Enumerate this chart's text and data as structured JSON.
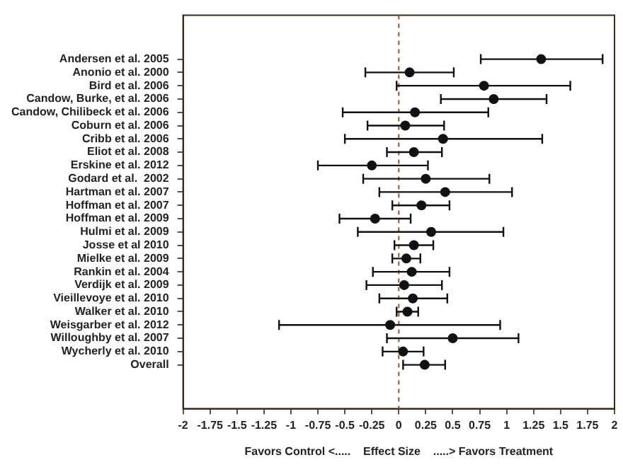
{
  "chart_data": {
    "type": "scatter",
    "orientation": "horizontal",
    "xlabel": "Favors Control <.....    Effect Size    .....> Favors Treatment",
    "categories": [
      "Andersen et al. 2005",
      "Anonio et al. 2000",
      "Bird et al. 2006",
      "Candow, Burke, et al. 2006",
      "Candow, Chilibeck et al. 2006",
      "Coburn et al. 2006",
      "Cribb et al. 2006",
      "Eliot et al. 2008",
      "Erskine et al. 2012",
      "Godard et al.  2002",
      "Hartman et al. 2007",
      "Hoffman et al. 2007",
      "Hoffman et al. 2009",
      "Hulmi et al. 2009",
      "Josse et al 2010",
      "Mielke et al. 2009",
      "Rankin et al. 2004",
      "Verdijk et al. 2009",
      "Vieillevoye et al. 2010",
      "Walker et al. 2010",
      "Weisgarber et al. 2012",
      "Willoughby et al. 2007",
      "Wycherly et al. 2010",
      "Overall"
    ],
    "values": [
      1.32,
      0.1,
      0.79,
      0.88,
      0.15,
      0.06,
      0.41,
      0.14,
      -0.25,
      0.25,
      0.43,
      0.21,
      -0.22,
      0.3,
      0.14,
      0.07,
      0.12,
      0.05,
      0.13,
      0.08,
      -0.08,
      0.5,
      0.04,
      0.24
    ],
    "errors": [
      [
        0.76,
        1.89
      ],
      [
        -0.31,
        0.51
      ],
      [
        -0.02,
        1.59
      ],
      [
        0.39,
        1.37
      ],
      [
        -0.52,
        0.83
      ],
      [
        -0.29,
        0.42
      ],
      [
        -0.5,
        1.33
      ],
      [
        -0.11,
        0.4
      ],
      [
        -0.75,
        0.27
      ],
      [
        -0.33,
        0.84
      ],
      [
        -0.18,
        1.05
      ],
      [
        -0.06,
        0.47
      ],
      [
        -0.55,
        0.11
      ],
      [
        -0.38,
        0.97
      ],
      [
        -0.04,
        0.32
      ],
      [
        -0.06,
        0.2
      ],
      [
        -0.24,
        0.47
      ],
      [
        -0.3,
        0.4
      ],
      [
        -0.18,
        0.45
      ],
      [
        -0.02,
        0.18
      ],
      [
        -1.11,
        0.94
      ],
      [
        -0.11,
        1.11
      ],
      [
        -0.15,
        0.23
      ],
      [
        0.04,
        0.43
      ]
    ],
    "color": "#111111",
    "marker": "circle",
    "xlim": [
      -2,
      2
    ],
    "xticks": [
      -2,
      -1.75,
      -1.5,
      -1.25,
      -1,
      -0.75,
      -0.5,
      -0.25,
      0,
      0.25,
      0.5,
      0.75,
      1,
      1.25,
      1.5,
      1.75,
      2
    ],
    "ref_lines": [
      {
        "axis": "x",
        "value": 0,
        "color": "#a0522d",
        "line_style": "dashed"
      }
    ],
    "grid": false,
    "legend": false
  }
}
